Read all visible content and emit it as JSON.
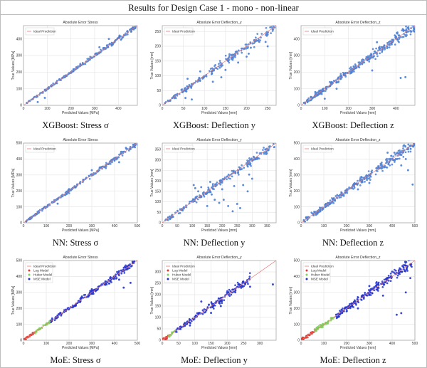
{
  "header": {
    "title": "Results for Design Case 1 - mono - non-linear"
  },
  "colors": {
    "ideal": "#e8777a",
    "xgb_nn_points": "#4a7fd3",
    "log": "#e23a2e",
    "huber": "#7ed35b",
    "mse": "#2233cc"
  },
  "chart_data": [
    {
      "type": "scatter",
      "title": "Absolute Error Stress",
      "caption": "XGBoost: Stress σ",
      "xlabel": "Predicted Values [MPa]",
      "ylabel": "True Values [MPa]",
      "xlim": [
        0,
        480
      ],
      "ylim": [
        0,
        480
      ],
      "xticks": [
        0,
        100,
        200,
        300,
        400
      ],
      "yticks": [
        0,
        100,
        200,
        300,
        400
      ],
      "legend": [
        "Ideal Prediction"
      ],
      "legend_position": "top-left",
      "grid": true,
      "n_points": 220,
      "spread": 0.02,
      "outliers": [
        [
          90,
          45
        ],
        [
          60,
          20
        ],
        [
          320,
          350
        ],
        [
          360,
          400
        ],
        [
          405,
          420
        ]
      ]
    },
    {
      "type": "scatter",
      "title": "Absolute Error Deflection_y",
      "caption": "XGBoost: Deflection y",
      "xlabel": "Predicted Values [mm]",
      "ylabel": "True Values [mm]",
      "xlim": [
        0,
        270
      ],
      "ylim": [
        0,
        270
      ],
      "xticks": [
        0,
        50,
        100,
        150,
        200,
        250
      ],
      "yticks": [
        0,
        50,
        100,
        150,
        200,
        250
      ],
      "legend": [
        "Ideal Prediction"
      ],
      "legend_position": "top-left",
      "grid": true,
      "n_points": 200,
      "spread": 0.05,
      "outliers": [
        [
          70,
          20
        ],
        [
          55,
          25
        ],
        [
          90,
          115
        ],
        [
          150,
          120
        ],
        [
          205,
          175
        ],
        [
          210,
          195
        ],
        [
          230,
          215
        ],
        [
          250,
          200
        ],
        [
          245,
          215
        ],
        [
          180,
          145
        ],
        [
          120,
          80
        ],
        [
          140,
          95
        ],
        [
          200,
          165
        ],
        [
          60,
          90
        ]
      ]
    },
    {
      "type": "scatter",
      "title": "Absolute Error Deflection_z",
      "caption": "XGBoost: Deflection z",
      "xlabel": "Predicted Values [mm]",
      "ylabel": "True Values [mm]",
      "xlim": [
        0,
        480
      ],
      "ylim": [
        0,
        480
      ],
      "xticks": [
        0,
        100,
        200,
        300,
        400
      ],
      "yticks": [
        0,
        100,
        200,
        300,
        400
      ],
      "legend": [
        "Ideal Prediction"
      ],
      "legend_position": "top-left",
      "grid": true,
      "n_points": 320,
      "spread": 0.05,
      "outliers": [
        [
          100,
          40
        ],
        [
          60,
          80
        ],
        [
          420,
          165
        ],
        [
          440,
          170
        ],
        [
          300,
          210
        ],
        [
          150,
          100
        ],
        [
          320,
          380
        ]
      ]
    },
    {
      "type": "scatter",
      "title": "Absolute Error Stress",
      "caption": "NN: Stress σ",
      "xlabel": "Predicted Values [MPa]",
      "ylabel": "True Values [MPa]",
      "xlim": [
        0,
        500
      ],
      "ylim": [
        0,
        500
      ],
      "xticks": [
        0,
        100,
        200,
        300,
        400,
        500
      ],
      "yticks": [
        0,
        100,
        200,
        300,
        400,
        500
      ],
      "legend": [
        "Ideal Prediction"
      ],
      "legend_position": "top-left",
      "grid": true,
      "n_points": 230,
      "spread": 0.025,
      "outliers": [
        [
          150,
          120
        ],
        [
          300,
          330
        ],
        [
          420,
          380
        ],
        [
          450,
          470
        ]
      ]
    },
    {
      "type": "scatter",
      "title": "Absolute Error Deflection_y",
      "caption": "NN: Deflection y",
      "xlabel": "Predicted Values [mm]",
      "ylabel": "True Values [mm]",
      "xlim": [
        0,
        380
      ],
      "ylim": [
        0,
        380
      ],
      "xticks": [
        0,
        50,
        100,
        150,
        200,
        250,
        300,
        350
      ],
      "yticks": [
        0,
        50,
        100,
        150,
        200,
        250,
        300,
        350
      ],
      "legend": [
        "Ideal Prediction"
      ],
      "legend_position": "top-left",
      "grid": true,
      "n_points": 210,
      "spread": 0.05,
      "outliers": [
        [
          105,
          180
        ],
        [
          110,
          165
        ],
        [
          130,
          170
        ],
        [
          160,
          195
        ],
        [
          175,
          110
        ],
        [
          190,
          95
        ],
        [
          205,
          110
        ],
        [
          220,
          80
        ],
        [
          235,
          55
        ],
        [
          250,
          90
        ],
        [
          260,
          70
        ],
        [
          240,
          175
        ],
        [
          270,
          180
        ],
        [
          120,
          150
        ],
        [
          150,
          80
        ],
        [
          290,
          230
        ],
        [
          200,
          160
        ],
        [
          165,
          135
        ],
        [
          285,
          150
        ],
        [
          300,
          210
        ]
      ]
    },
    {
      "type": "scatter",
      "title": "Absolute Error Deflection_z",
      "caption": "NN: Deflection z",
      "xlabel": "Predicted Values [mm]",
      "ylabel": "True Values [mm]",
      "xlim": [
        0,
        500
      ],
      "ylim": [
        0,
        500
      ],
      "xticks": [
        0,
        100,
        200,
        300,
        400,
        500
      ],
      "yticks": [
        0,
        100,
        200,
        300,
        400,
        500
      ],
      "legend": [
        "Ideal Prediction"
      ],
      "legend_position": "top-left",
      "grid": true,
      "n_points": 300,
      "spread": 0.05,
      "outliers": [
        [
          490,
          240
        ],
        [
          470,
          330
        ],
        [
          440,
          360
        ],
        [
          380,
          440
        ],
        [
          300,
          250
        ],
        [
          250,
          210
        ],
        [
          410,
          440
        ],
        [
          460,
          400
        ]
      ]
    },
    {
      "type": "scatter",
      "title": "Absolute Error Stress",
      "caption": "MoE: Stress σ",
      "xlabel": "Predicted Values [MPa]",
      "ylabel": "True Values [MPa]",
      "xlim": [
        0,
        500
      ],
      "ylim": [
        0,
        500
      ],
      "xticks": [
        0,
        100,
        200,
        300,
        400,
        500
      ],
      "yticks": [
        0,
        100,
        200,
        300,
        400,
        500
      ],
      "legend": [
        "Ideal Prediction",
        "Log Model",
        "Huber Model",
        "MSE Model"
      ],
      "legend_position": "top-left",
      "grid": true,
      "segments": [
        {
          "model": "Log Model",
          "range": [
            0,
            50
          ]
        },
        {
          "model": "Huber Model",
          "range": [
            50,
            120
          ]
        },
        {
          "model": "MSE Model",
          "range": [
            120,
            490
          ]
        }
      ],
      "n_points": 260,
      "spread": 0.03,
      "outliers": [
        [
          420,
          380
        ],
        [
          440,
          330
        ],
        [
          470,
          360
        ],
        [
          300,
          320
        ],
        [
          250,
          260
        ],
        [
          460,
          450
        ]
      ]
    },
    {
      "type": "scatter",
      "title": "Absolute Error Deflection_y",
      "caption": "MoE: Deflection y",
      "xlabel": "Predicted Values [mm]",
      "ylabel": "True Values [mm]",
      "xlim": [
        0,
        350
      ],
      "ylim": [
        0,
        350
      ],
      "xticks": [
        0,
        50,
        100,
        150,
        200,
        250,
        300
      ],
      "yticks": [
        0,
        50,
        100,
        150,
        200,
        250,
        300
      ],
      "legend": [
        "Ideal Prediction",
        "Log Model",
        "Huber Model",
        "MSE Model"
      ],
      "legend_position": "top-left",
      "grid": true,
      "segments": [
        {
          "model": "Log Model",
          "range": [
            0,
            20
          ]
        },
        {
          "model": "Huber Model",
          "range": [
            20,
            40
          ]
        },
        {
          "model": "MSE Model",
          "range": [
            40,
            270
          ]
        }
      ],
      "n_points": 200,
      "spread": 0.05,
      "outliers": [
        [
          340,
          245
        ],
        [
          120,
          170
        ],
        [
          150,
          120
        ],
        [
          180,
          150
        ],
        [
          210,
          215
        ],
        [
          250,
          255
        ],
        [
          85,
          65
        ],
        [
          270,
          235
        ]
      ]
    },
    {
      "type": "scatter",
      "title": "Absolute Error Deflection_z",
      "caption": "MoE: Deflection z",
      "xlabel": "Predicted Values [mm]",
      "ylabel": "True Values [mm]",
      "xlim": [
        0,
        500
      ],
      "ylim": [
        0,
        500
      ],
      "xticks": [
        0,
        100,
        200,
        300,
        400,
        500
      ],
      "yticks": [
        0,
        100,
        200,
        300,
        400,
        500
      ],
      "legend": [
        "Ideal Prediction",
        "Log Model",
        "Huber Model",
        "MSE Model"
      ],
      "legend_position": "top-left",
      "grid": true,
      "segments": [
        {
          "model": "Log Model",
          "range": [
            0,
            60
          ]
        },
        {
          "model": "Huber Model",
          "range": [
            60,
            150
          ]
        },
        {
          "model": "MSE Model",
          "range": [
            150,
            490
          ]
        }
      ],
      "n_points": 320,
      "spread": 0.05,
      "outliers": [
        [
          420,
          160
        ],
        [
          440,
          170
        ],
        [
          360,
          280
        ],
        [
          300,
          340
        ],
        [
          480,
          390
        ],
        [
          250,
          200
        ],
        [
          400,
          430
        ],
        [
          460,
          300
        ]
      ]
    }
  ]
}
